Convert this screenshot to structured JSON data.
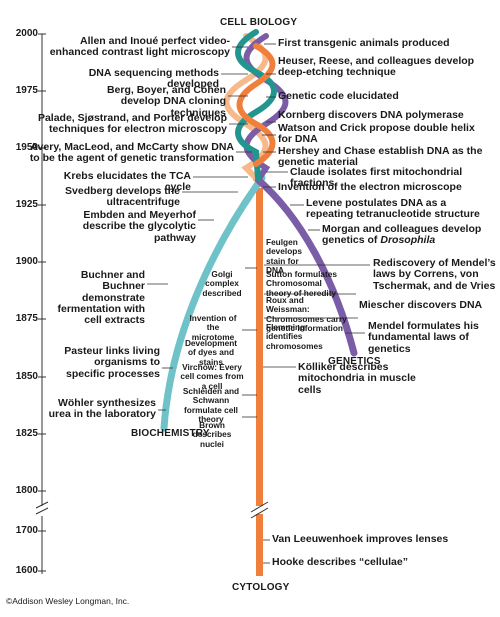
{
  "headings": {
    "top": "CELL BIOLOGY",
    "biochemistry": "BIOCHEMISTRY",
    "genetics": "GENETICS",
    "bottom": "CYTOLOGY"
  },
  "years": [
    "2000",
    "1975",
    "1950",
    "1925",
    "1900",
    "1875",
    "1850",
    "1825",
    "1800",
    "1700",
    "1600"
  ],
  "colors": {
    "cytology": "#f07f3c",
    "biochemistry": "#6fc3c8",
    "genetics": "#7b5ca6",
    "teal": "#23958f",
    "peach": "#f7b98a",
    "axis": "#333333"
  },
  "left_events": {
    "allen": "Allen and Inoué perfect video-enhanced contrast light microscopy",
    "dna_seq": "DNA sequencing methods developed",
    "berg": "Berg, Boyer, and Cohen develop DNA cloning techniques",
    "palade": "Palade, Sjøstrand, and Porter develop techniques for electron microscopy",
    "avery": "Avery, MacLeod, and McCarty show DNA to be the agent of genetic transformation",
    "krebs": "Krebs elucidates the TCA cycle",
    "svedberg": "Svedberg develops the ultracentrifuge",
    "embden": "Embden and Meyerhof describe the glycolytic pathway",
    "buchner": "Buchner and Buchner demonstrate fermentation with cell extracts",
    "pasteur": "Pasteur links living organisms to specific processes",
    "wohler": "Wöhler synthesizes urea in the laboratory"
  },
  "right_events": {
    "transgenic": "First transgenic animals produced",
    "heuser": "Heuser, Reese, and colleagues develop deep-etching technique",
    "code": "Genetic code elucidated",
    "kornberg": "Kornberg discovers DNA polymerase",
    "watson": "Watson and Crick propose double helix for DNA",
    "hershey": "Hershey and Chase establish DNA as the genetic material",
    "claude": "Claude isolates first mitochondrial fractions",
    "em": "Invention of the electron microscope",
    "levene": "Levene postulates DNA as a repeating tetranucleotide structure",
    "morgan": "Morgan and colleagues develop genetics of ",
    "morgan_italic": "Drosophila",
    "mendel_rediscovery": "Rediscovery of Mendel’s laws by Correns, von Tschermak, and de Vries",
    "miescher": "Miescher discovers DNA",
    "mendel": "Mendel formulates his fundamental laws of genetics",
    "kolliker": "Kölliker describes mitochondria in muscle cells",
    "leeuwenhoek": "Van Leeuwenhoek improves lenses",
    "hooke": "Hooke describes “cellulae”"
  },
  "middle_events": {
    "feulgen": "Feulgen develops stain for DNA",
    "sutton": "Sutton formulates Chromosomal theory of heredity",
    "golgi": "Golgi complex described",
    "roux": "Roux and Weissman: Chromosomes carry genetic information",
    "flemming": "Flemming identifies chromosomes",
    "microtome": "Invention of the microtome",
    "dyes": "Development of dyes and stains",
    "virchow": "Virchow: Every cell comes from a cell",
    "schleiden": "Schleiden and Schwann formulate cell theory",
    "brown": "Brown describes nuclei"
  },
  "copyright": "©Addison Wesley Longman, Inc."
}
